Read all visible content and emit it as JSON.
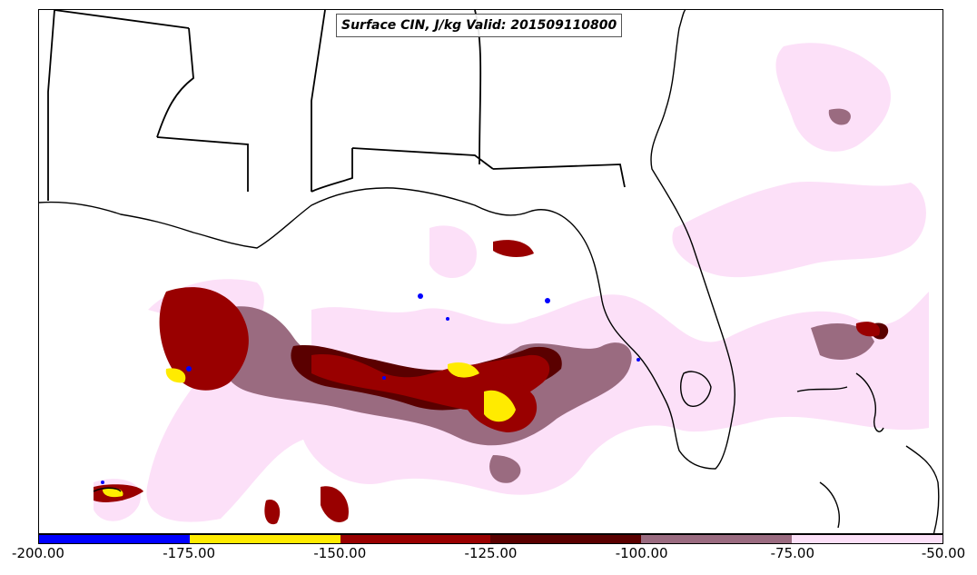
{
  "title": "Surface CIN, J/kg Valid: 201509110800",
  "colorbar": {
    "colors": [
      "#0000ff",
      "#ffeb00",
      "#990000",
      "#5a0000",
      "#9a6b80",
      "#fce0f8"
    ],
    "ticks": [
      "-200.00",
      "-175.00",
      "-150.00",
      "-125.00",
      "-100.00",
      "-75.00",
      "-50.00"
    ]
  }
}
